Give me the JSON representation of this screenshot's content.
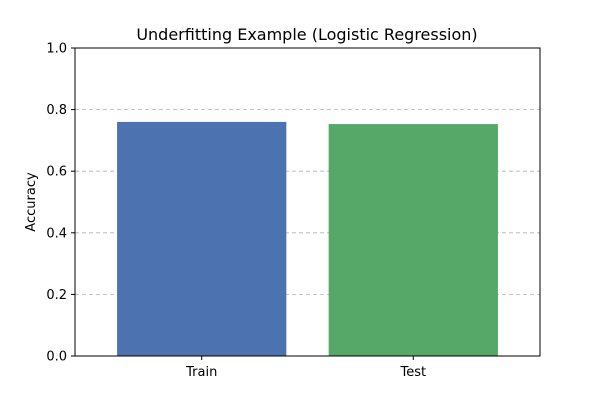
{
  "chart_data": {
    "type": "bar",
    "title": "Underfitting Example (Logistic Regression)",
    "xlabel": "",
    "ylabel": "Accuracy",
    "categories": [
      "Train",
      "Test"
    ],
    "values": [
      0.76,
      0.753
    ],
    "colors": [
      "#4c72b0",
      "#55a868"
    ],
    "ylim": [
      0,
      1.0
    ],
    "yticks": [
      "0.0",
      "0.2",
      "0.4",
      "0.6",
      "0.8",
      "1.0"
    ],
    "grid": "y-dashed",
    "legend": "none"
  }
}
